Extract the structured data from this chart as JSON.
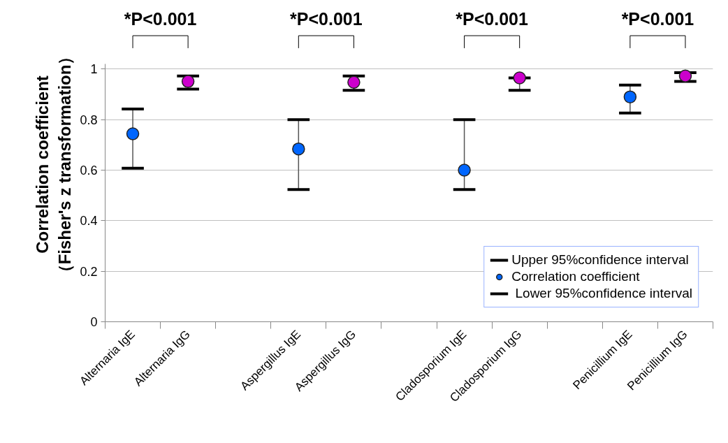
{
  "chart_data": {
    "type": "scatter",
    "ylabel": "Correlation coefficient\n（Fisher's z transformation）",
    "categories": [
      "Alternaria IgE",
      "Alternaria IgG",
      null,
      "Aspergillus IgE",
      "Aspergillus IgG",
      null,
      "Cladosporium IgE",
      "Cladosporium IgG",
      null,
      "Penicillium IgE",
      "Penicillium IgG"
    ],
    "series": [
      {
        "name": "Correlation coefficient",
        "colors": [
          "#0066ff",
          "#cc00cc",
          null,
          "#0066ff",
          "#cc00cc",
          null,
          "#0066ff",
          "#cc00cc",
          null,
          "#0066ff",
          "#cc00cc"
        ],
        "values": [
          0.744,
          0.951,
          null,
          0.684,
          0.948,
          null,
          0.6,
          0.965,
          null,
          0.89,
          0.973
        ],
        "errors": [
          [
            0.608,
            0.842
          ],
          [
            0.921,
            0.973
          ],
          null,
          [
            0.523,
            0.8
          ],
          [
            0.916,
            0.973
          ],
          null,
          [
            0.523,
            0.8
          ],
          [
            0.916,
            0.965
          ],
          null,
          [
            0.826,
            0.937
          ],
          [
            0.951,
            0.986
          ]
        ]
      }
    ],
    "ylim": [
      0,
      1.02
    ],
    "yticks": [
      0,
      0.2,
      0.4,
      0.6,
      0.8,
      1
    ],
    "grid": "y",
    "legend": "bottom right",
    "marker": "circle",
    "annotations": [
      "Upper 95%confidence interval",
      " Lower 95%confidence interval",
      "*P<0.001",
      "*P<0.001",
      "*P<0.001",
      "*P<0.001"
    ]
  }
}
